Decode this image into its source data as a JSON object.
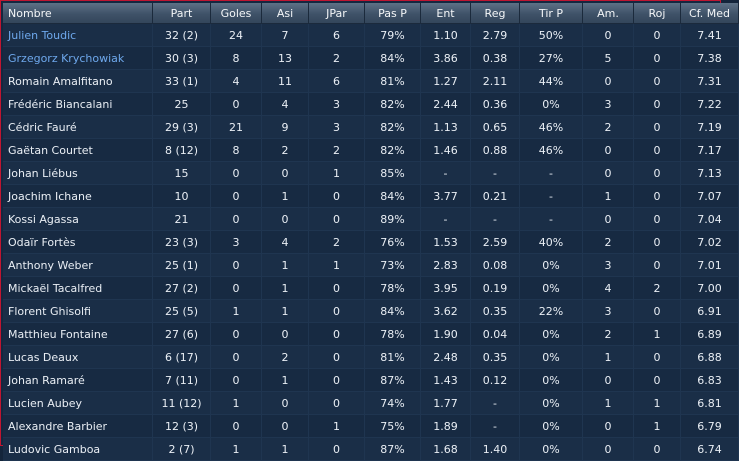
{
  "columns": [
    "Nombre",
    "Part",
    "Goles",
    "Asi",
    "JPar",
    "Pas P",
    "Ent",
    "Reg",
    "Tir P",
    "Am.",
    "Roj",
    "Cf. Med"
  ],
  "colors": {
    "link": "#6ea8ec",
    "border": "#c01631"
  },
  "rows": [
    {
      "name": "Julien Toudic",
      "link": true,
      "cells": [
        "32 (2)",
        "24",
        "7",
        "6",
        "79%",
        "1.10",
        "2.79",
        "50%",
        "0",
        "0",
        "7.41"
      ]
    },
    {
      "name": "Grzegorz Krychowiak",
      "link": true,
      "cells": [
        "30 (3)",
        "8",
        "13",
        "2",
        "84%",
        "3.86",
        "0.38",
        "27%",
        "5",
        "0",
        "7.38"
      ]
    },
    {
      "name": "Romain Amalfitano",
      "link": false,
      "cells": [
        "33 (1)",
        "4",
        "11",
        "6",
        "81%",
        "1.27",
        "2.11",
        "44%",
        "0",
        "0",
        "7.31"
      ]
    },
    {
      "name": "Frédéric Biancalani",
      "link": false,
      "cells": [
        "25",
        "0",
        "4",
        "3",
        "82%",
        "2.44",
        "0.36",
        "0%",
        "3",
        "0",
        "7.22"
      ]
    },
    {
      "name": "Cédric Fauré",
      "link": false,
      "cells": [
        "29 (3)",
        "21",
        "9",
        "3",
        "82%",
        "1.13",
        "0.65",
        "46%",
        "2",
        "0",
        "7.19"
      ]
    },
    {
      "name": "Gaëtan Courtet",
      "link": false,
      "cells": [
        "8 (12)",
        "8",
        "2",
        "2",
        "82%",
        "1.46",
        "0.88",
        "46%",
        "0",
        "0",
        "7.17"
      ]
    },
    {
      "name": "Johan Liébus",
      "link": false,
      "cells": [
        "15",
        "0",
        "0",
        "1",
        "85%",
        "-",
        "-",
        "-",
        "0",
        "0",
        "7.13"
      ]
    },
    {
      "name": "Joachim Ichane",
      "link": false,
      "cells": [
        "10",
        "0",
        "1",
        "0",
        "84%",
        "3.77",
        "0.21",
        "-",
        "1",
        "0",
        "7.07"
      ]
    },
    {
      "name": "Kossi Agassa",
      "link": false,
      "cells": [
        "21",
        "0",
        "0",
        "0",
        "89%",
        "-",
        "-",
        "-",
        "0",
        "0",
        "7.04"
      ]
    },
    {
      "name": "Odaïr Fortès",
      "link": false,
      "cells": [
        "23 (3)",
        "3",
        "4",
        "2",
        "76%",
        "1.53",
        "2.59",
        "40%",
        "2",
        "0",
        "7.02"
      ]
    },
    {
      "name": "Anthony Weber",
      "link": false,
      "cells": [
        "25 (1)",
        "0",
        "1",
        "1",
        "73%",
        "2.83",
        "0.08",
        "0%",
        "3",
        "0",
        "7.01"
      ]
    },
    {
      "name": "Mickaël Tacalfred",
      "link": false,
      "cells": [
        "27 (2)",
        "0",
        "1",
        "0",
        "78%",
        "3.95",
        "0.19",
        "0%",
        "4",
        "2",
        "7.00"
      ]
    },
    {
      "name": "Florent Ghisolfi",
      "link": false,
      "cells": [
        "25 (5)",
        "1",
        "1",
        "0",
        "84%",
        "3.62",
        "0.35",
        "22%",
        "3",
        "0",
        "6.91"
      ]
    },
    {
      "name": "Matthieu Fontaine",
      "link": false,
      "cells": [
        "27 (6)",
        "0",
        "0",
        "0",
        "78%",
        "1.90",
        "0.04",
        "0%",
        "2",
        "1",
        "6.89"
      ]
    },
    {
      "name": "Lucas Deaux",
      "link": false,
      "cells": [
        "6 (17)",
        "0",
        "2",
        "0",
        "81%",
        "2.48",
        "0.35",
        "0%",
        "1",
        "0",
        "6.88"
      ]
    },
    {
      "name": "Johan Ramaré",
      "link": false,
      "cells": [
        "7 (11)",
        "0",
        "1",
        "0",
        "87%",
        "1.43",
        "0.12",
        "0%",
        "0",
        "0",
        "6.83"
      ]
    },
    {
      "name": "Lucien Aubey",
      "link": false,
      "cells": [
        "11 (12)",
        "1",
        "0",
        "0",
        "74%",
        "1.77",
        "-",
        "0%",
        "1",
        "1",
        "6.81"
      ]
    },
    {
      "name": "Alexandre Barbier",
      "link": false,
      "cells": [
        "12 (3)",
        "0",
        "0",
        "1",
        "75%",
        "1.89",
        "-",
        "0%",
        "0",
        "1",
        "6.79"
      ]
    },
    {
      "name": "Ludovic Gamboa",
      "link": false,
      "cells": [
        "2 (7)",
        "1",
        "1",
        "0",
        "87%",
        "1.68",
        "1.40",
        "0%",
        "0",
        "0",
        "6.74"
      ]
    }
  ]
}
